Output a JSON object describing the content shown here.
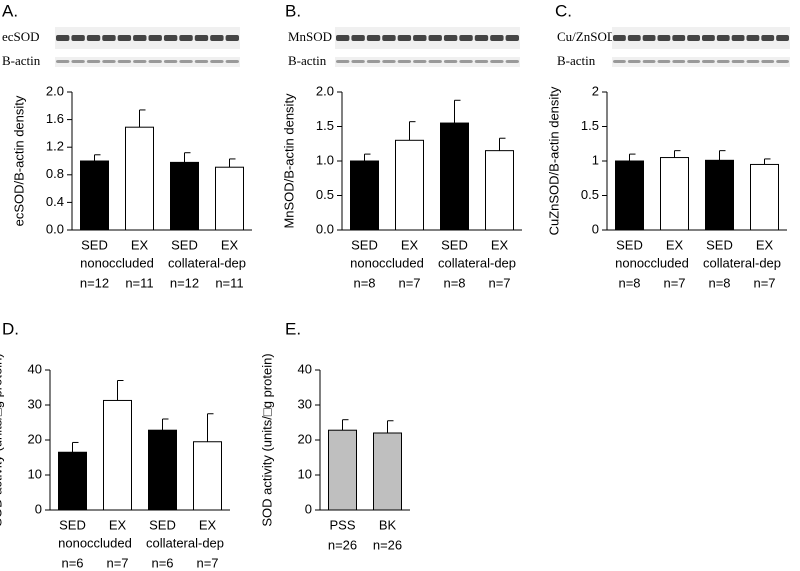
{
  "chart_data": [
    {
      "type": "bar",
      "title": "A.",
      "blot_labels": [
        "ecSOD",
        "B-actin"
      ],
      "y_label": "ecSOD/B-actin density",
      "categories": [
        "SED",
        "EX",
        "SED",
        "EX"
      ],
      "groups": [
        "nonoccluded",
        "collateral-dep"
      ],
      "n_labels": [
        "n=12",
        "n=11",
        "n=12",
        "n=11"
      ],
      "values": [
        1.0,
        1.49,
        0.98,
        0.91
      ],
      "errors": [
        0.09,
        0.25,
        0.14,
        0.12
      ],
      "colors": [
        "#000000",
        "#ffffff",
        "#000000",
        "#ffffff"
      ],
      "ylim": [
        0,
        2.0
      ],
      "yticks": [
        {
          "value": 0,
          "label": "0.0"
        },
        {
          "value": 0.4,
          "label": "0.4"
        },
        {
          "value": 0.8,
          "label": "0.8"
        },
        {
          "value": 1.2,
          "label": "1.2"
        },
        {
          "value": 1.6,
          "label": "1.6"
        },
        {
          "value": 2.0,
          "label": "2.0"
        }
      ]
    },
    {
      "type": "bar",
      "title": "B.",
      "blot_labels": [
        "MnSOD",
        "B-actin"
      ],
      "y_label": "MnSOD/B-actin density",
      "categories": [
        "SED",
        "EX",
        "SED",
        "EX"
      ],
      "groups": [
        "nonoccluded",
        "collateral-dep"
      ],
      "n_labels": [
        "n=8",
        "n=7",
        "n=8",
        "n=7"
      ],
      "values": [
        1.0,
        1.3,
        1.55,
        1.15
      ],
      "errors": [
        0.1,
        0.27,
        0.33,
        0.18
      ],
      "colors": [
        "#000000",
        "#ffffff",
        "#000000",
        "#ffffff"
      ],
      "ylim": [
        0,
        2.0
      ],
      "yticks": [
        {
          "value": 0,
          "label": "0.0"
        },
        {
          "value": 0.5,
          "label": "0.5"
        },
        {
          "value": 1.0,
          "label": "1.0"
        },
        {
          "value": 1.5,
          "label": "1.5"
        },
        {
          "value": 2.0,
          "label": "2.0"
        }
      ]
    },
    {
      "type": "bar",
      "title": "C.",
      "blot_labels": [
        "Cu/ZnSOD",
        "B-actin"
      ],
      "y_label": "CuZnSOD/B-actin density",
      "categories": [
        "SED",
        "EX",
        "SED",
        "EX"
      ],
      "groups": [
        "nonoccluded",
        "collateral-dep"
      ],
      "n_labels": [
        "n=8",
        "n=7",
        "n=8",
        "n=7"
      ],
      "values": [
        1.0,
        1.05,
        1.01,
        0.95
      ],
      "errors": [
        0.1,
        0.1,
        0.14,
        0.08
      ],
      "colors": [
        "#000000",
        "#ffffff",
        "#000000",
        "#ffffff"
      ],
      "ylim": [
        0,
        2
      ],
      "yticks": [
        0,
        0.5,
        1,
        1.5,
        2
      ]
    },
    {
      "type": "bar",
      "title": "D.",
      "y_label": "SOD activity (units/□g protein)",
      "categories": [
        "SED",
        "EX",
        "SED",
        "EX"
      ],
      "groups": [
        "nonoccluded",
        "collateral-dep"
      ],
      "n_labels": [
        "n=6",
        "n=7",
        "n=6",
        "n=7"
      ],
      "values": [
        16.5,
        31.3,
        22.8,
        19.5
      ],
      "errors": [
        2.8,
        5.7,
        3.2,
        8.0
      ],
      "colors": [
        "#000000",
        "#ffffff",
        "#000000",
        "#ffffff"
      ],
      "ylim": [
        0,
        40
      ],
      "yticks": [
        0,
        10,
        20,
        30,
        40
      ]
    },
    {
      "type": "bar",
      "title": "E.",
      "y_label": "SOD activity (units/□g protein)",
      "categories": [
        "PSS",
        "BK"
      ],
      "n_labels": [
        "n=26",
        "n=26"
      ],
      "values": [
        22.8,
        22.0
      ],
      "errors": [
        3.0,
        3.5
      ],
      "colors": [
        "#bfbfbf",
        "#bfbfbf"
      ],
      "ylim": [
        0,
        40
      ],
      "yticks": [
        0,
        10,
        20,
        30,
        40
      ]
    }
  ]
}
